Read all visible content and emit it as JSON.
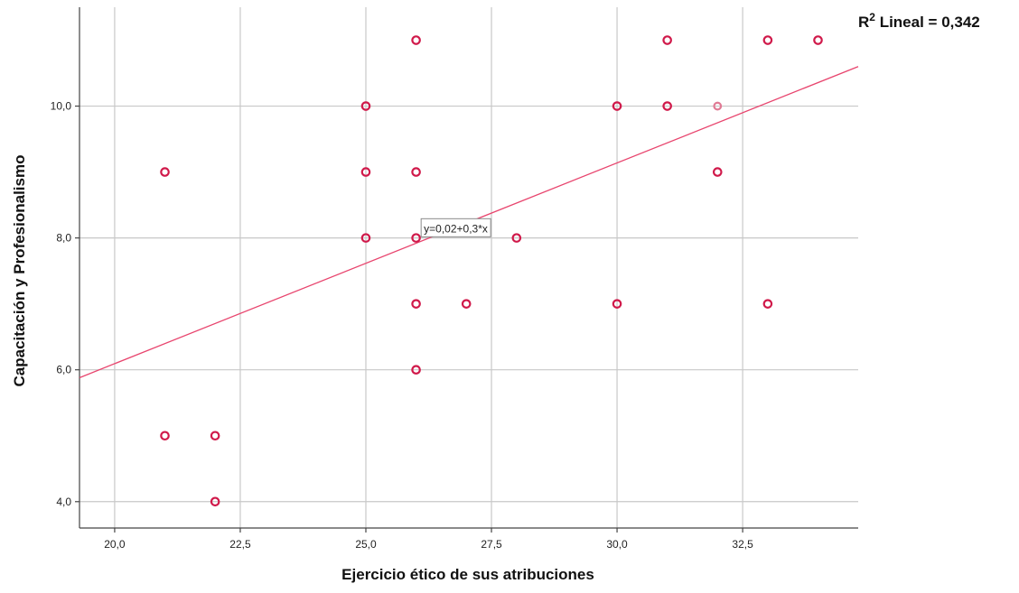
{
  "chart_data": {
    "type": "scatter",
    "xlabel": "Ejercicio ético de sus atribuciones",
    "ylabel": "Capacitación y Profesionalismo",
    "xlim": [
      19.3,
      34.8
    ],
    "ylim": [
      3.6,
      11.5
    ],
    "x_ticks": [
      20.0,
      22.5,
      25.0,
      27.5,
      30.0,
      32.5
    ],
    "x_tick_labels": [
      "20,0",
      "22,5",
      "25,0",
      "27,5",
      "30,0",
      "32,5"
    ],
    "y_ticks": [
      4.0,
      6.0,
      8.0,
      10.0
    ],
    "y_tick_labels": [
      "4,0",
      "6,0",
      "8,0",
      "10,0"
    ],
    "grid": true,
    "points": [
      {
        "x": 21,
        "y": 9
      },
      {
        "x": 21,
        "y": 5
      },
      {
        "x": 22,
        "y": 5
      },
      {
        "x": 22,
        "y": 4
      },
      {
        "x": 25,
        "y": 10
      },
      {
        "x": 25,
        "y": 9
      },
      {
        "x": 25,
        "y": 8
      },
      {
        "x": 26,
        "y": 11
      },
      {
        "x": 26,
        "y": 9
      },
      {
        "x": 26,
        "y": 8
      },
      {
        "x": 26,
        "y": 7
      },
      {
        "x": 26,
        "y": 6
      },
      {
        "x": 27,
        "y": 7
      },
      {
        "x": 28,
        "y": 8
      },
      {
        "x": 30,
        "y": 10
      },
      {
        "x": 30,
        "y": 7
      },
      {
        "x": 31,
        "y": 11
      },
      {
        "x": 31,
        "y": 10
      },
      {
        "x": 32,
        "y": 10,
        "light": true
      },
      {
        "x": 32,
        "y": 9
      },
      {
        "x": 33,
        "y": 11
      },
      {
        "x": 33,
        "y": 7
      },
      {
        "x": 34,
        "y": 11
      }
    ],
    "fit_line": {
      "x": [
        19.3,
        34.8
      ],
      "y": [
        5.88,
        10.6
      ]
    },
    "fit_equation": "y=0,02+0,3*x",
    "fit_equation_position_data": {
      "x": 26.1,
      "y": 8.1
    },
    "r2_label": "R² Lineal = 0,342",
    "r2_prefix": "R",
    "r2_superscript": "2",
    "r2_suffix": " Lineal = 0,342",
    "colors": {
      "points": "#d0194a",
      "fit": "#e8456e",
      "light_point": "#e07a94",
      "grid": "#c8c8c8"
    }
  }
}
